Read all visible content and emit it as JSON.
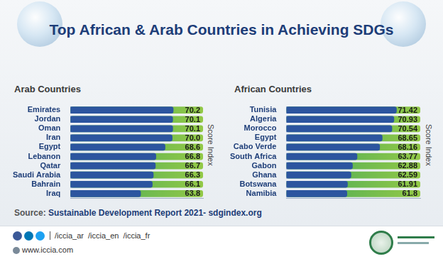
{
  "title": "Top African & Arab Countries in Achieving SDGs",
  "chart_data": [
    {
      "type": "bar",
      "orientation": "horizontal",
      "title": "Arab Countries",
      "categories": [
        "Emirates",
        "Jordan",
        "Oman",
        "Iran",
        "Egypt",
        "Lebanon",
        "Qatar",
        "Saudi Arabia",
        "Bahrain",
        "Iraq"
      ],
      "values": [
        70.2,
        70.1,
        70.1,
        70.0,
        68.6,
        66.8,
        66.7,
        66.3,
        66.1,
        63.8
      ],
      "value_labels": [
        "70.2",
        "70.1",
        "70.1",
        "70.0",
        "68.6",
        "66.8",
        "66.7",
        "66.3",
        "66.1",
        "63.8"
      ],
      "color": "#2c559f",
      "xlim": [
        50,
        76
      ],
      "xlabel": "Score Index",
      "grid": false,
      "data_labels": true,
      "tick_labels": "y"
    },
    {
      "type": "bar",
      "orientation": "horizontal",
      "title": "African Countries",
      "categories": [
        "Tunisia",
        "Algeria",
        "Morocco",
        "Egypt",
        "Cabo Verde",
        "South Africa",
        "Gabon",
        "Ghana",
        "Botswana",
        "Namibia"
      ],
      "values": [
        71.42,
        70.93,
        70.54,
        68.65,
        68.16,
        63.77,
        62.88,
        62.59,
        61.91,
        61.8
      ],
      "color": "#2c559f",
      "xlim": [
        50,
        76
      ],
      "xlabel": "Score Index",
      "grid": false,
      "data_labels": true,
      "tick_labels": "y"
    }
  ],
  "source": {
    "label": "Source:",
    "text": "Sustainable Development Report 2021- sdgindex.org"
  },
  "footer": {
    "social": [
      "/iccia_ar",
      "/iccia_en",
      "/iccia_fr"
    ],
    "website": "www.iccia.com"
  }
}
